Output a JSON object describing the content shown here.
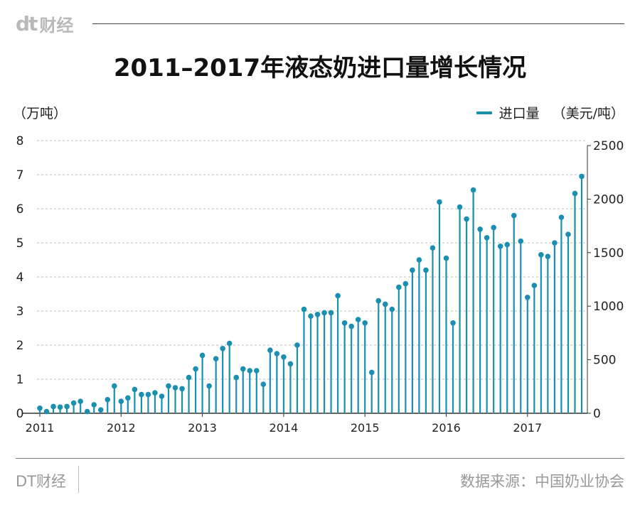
{
  "header": {
    "logo_mark": "dt",
    "logo_text": "财经",
    "title": "2011–2017年液态奶进口量增长情况"
  },
  "footer": {
    "brand": "DT财经",
    "source": "数据来源：中国奶业协会"
  },
  "colors": {
    "series": "#1a8fb0",
    "grid": "#bdbdbd",
    "axis": "#333333"
  },
  "chart_data": {
    "type": "bar",
    "style": "lollipop",
    "title": "2011–2017年液态奶进口量增长情况",
    "ylabel": "（万吨）",
    "y2label": "（美元/吨）",
    "ylim": [
      0,
      8
    ],
    "y2lim": [
      0,
      2500
    ],
    "yticks": [
      "0",
      "1",
      "2",
      "3",
      "4",
      "5",
      "6",
      "7",
      "8"
    ],
    "y2ticks": [
      "0",
      "500",
      "1000",
      "1500",
      "2000",
      "2500"
    ],
    "xticks": [
      "2011",
      "2012",
      "2013",
      "2014",
      "2015",
      "2016",
      "2017"
    ],
    "grid": true,
    "legend_position": "top-right",
    "series": [
      {
        "name": "进口量",
        "start": "2011-01",
        "frequency": "monthly",
        "values": [
          0.15,
          0.05,
          0.2,
          0.18,
          0.2,
          0.3,
          0.35,
          0.05,
          0.25,
          0.1,
          0.4,
          0.8,
          0.35,
          0.45,
          0.7,
          0.55,
          0.55,
          0.6,
          0.5,
          0.8,
          0.75,
          0.72,
          1.05,
          1.3,
          1.7,
          0.8,
          1.6,
          1.9,
          2.05,
          1.05,
          1.3,
          1.25,
          1.25,
          0.85,
          1.85,
          1.75,
          1.65,
          1.45,
          2.0,
          3.05,
          2.85,
          2.9,
          2.95,
          2.95,
          3.45,
          2.65,
          2.55,
          2.75,
          2.65,
          1.2,
          3.3,
          3.2,
          3.05,
          3.7,
          3.8,
          4.2,
          4.5,
          4.2,
          4.85,
          6.2,
          4.55,
          2.65,
          6.05,
          5.7,
          6.55,
          5.4,
          5.15,
          5.45,
          4.9,
          4.95,
          5.8,
          5.05,
          3.4,
          3.75,
          4.65,
          4.6,
          5.0,
          5.75,
          5.25,
          6.45,
          6.95
        ]
      }
    ]
  }
}
